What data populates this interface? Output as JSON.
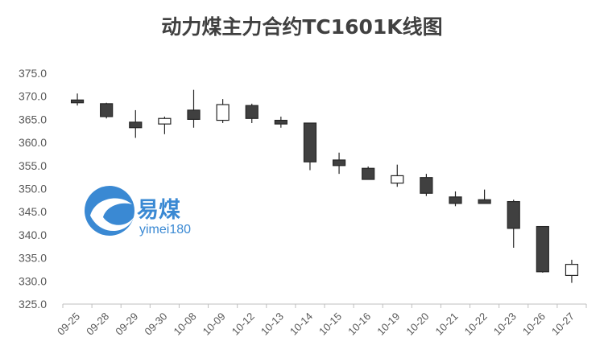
{
  "chart_data": {
    "type": "candlestick",
    "title": "动力煤主力合约TC1601K线图",
    "categories": [
      "09-25",
      "09-28",
      "09-29",
      "09-30",
      "10-08",
      "10-09",
      "10-12",
      "10-13",
      "10-14",
      "10-15",
      "10-16",
      "10-19",
      "10-20",
      "10-21",
      "10-22",
      "10-23",
      "10-26",
      "10-27"
    ],
    "series": [
      {
        "open": [
          369.2,
          368.4,
          364.4,
          364.0,
          367.0,
          364.8,
          368.0,
          364.8,
          364.2,
          356.2,
          354.4,
          351.2,
          352.4,
          348.2,
          347.6,
          347.2,
          341.8,
          331.2
        ],
        "high": [
          370.6,
          368.6,
          367.0,
          365.6,
          371.4,
          369.4,
          368.4,
          365.6,
          364.2,
          357.8,
          354.8,
          355.2,
          353.2,
          349.4,
          349.8,
          347.6,
          341.8,
          334.6
        ],
        "low": [
          368.0,
          365.2,
          361.0,
          361.8,
          363.2,
          364.2,
          364.2,
          363.2,
          354.0,
          353.2,
          352.0,
          350.4,
          348.4,
          346.2,
          346.8,
          337.2,
          331.8,
          329.6
        ],
        "close": [
          368.6,
          365.6,
          363.2,
          365.2,
          365.0,
          368.2,
          365.2,
          364.0,
          355.8,
          355.0,
          352.0,
          352.8,
          349.0,
          346.8,
          346.8,
          341.4,
          332.0,
          333.6
        ]
      }
    ],
    "ylim": [
      325,
      375
    ],
    "yticks": [
      "325.0",
      "330.0",
      "335.0",
      "340.0",
      "345.0",
      "350.0",
      "355.0",
      "360.0",
      "365.0",
      "370.0",
      "375.0"
    ],
    "grid": false,
    "colors": {
      "up_fill": "#ffffff",
      "down_fill": "#404040",
      "outline": "#262626",
      "axis": "#bfbfbf",
      "text": "#595959"
    }
  },
  "logo": {
    "name": "易煤",
    "sub": "yimei180",
    "color": "#2a7fd0"
  }
}
